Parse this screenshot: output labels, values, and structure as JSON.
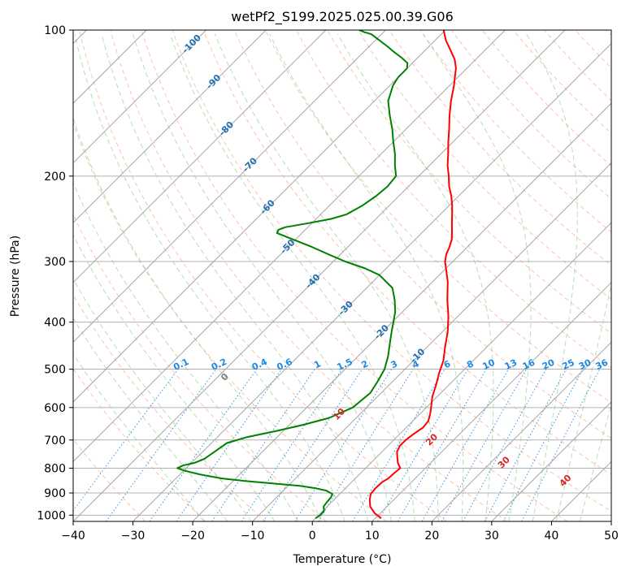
{
  "chart_data": {
    "type": "line",
    "title": "wetPf2_S199.2025.025.00.39.G06",
    "xlabel": "Temperature (°C)",
    "ylabel": "Pressure (hPa)",
    "xlim": [
      -40,
      50
    ],
    "ylim": [
      1030,
      100
    ],
    "y_scale": "log",
    "x_ticks": [
      -40,
      -30,
      -20,
      -10,
      0,
      10,
      20,
      30,
      40,
      50
    ],
    "y_ticks": [
      100,
      200,
      300,
      400,
      500,
      600,
      700,
      800,
      900,
      1000
    ],
    "grid": true,
    "skew": "isotherms slanted 45°",
    "colors": {
      "temperature": "#ff0000",
      "dewpoint": "#008000",
      "isotherm": "#808080",
      "dry_adiabat": "#ff8c69",
      "moist_adiabat": "#7fbf7f",
      "mixing_ratio": "#1e88e5",
      "isotherm_label": "#1f6fb4",
      "mixing_label": "#1e88e5",
      "moist_label_zero": "#808080",
      "moist_label": "#d62728"
    },
    "series": [
      {
        "name": "temperature",
        "points": [
          [
            1015,
            11.0
          ],
          [
            990,
            9.0
          ],
          [
            960,
            7.2
          ],
          [
            930,
            6.0
          ],
          [
            905,
            5.2
          ],
          [
            880,
            5.0
          ],
          [
            855,
            5.1
          ],
          [
            840,
            5.5
          ],
          [
            820,
            5.6
          ],
          [
            800,
            5.8
          ],
          [
            780,
            4.5
          ],
          [
            760,
            3.5
          ],
          [
            740,
            2.5
          ],
          [
            720,
            2.0
          ],
          [
            700,
            2.0
          ],
          [
            680,
            2.3
          ],
          [
            660,
            2.8
          ],
          [
            640,
            2.6
          ],
          [
            620,
            1.8
          ],
          [
            600,
            0.8
          ],
          [
            570,
            -0.8
          ],
          [
            540,
            -2.1
          ],
          [
            510,
            -3.6
          ],
          [
            480,
            -5.0
          ],
          [
            450,
            -7.0
          ],
          [
            420,
            -9.0
          ],
          [
            390,
            -11.5
          ],
          [
            360,
            -14.5
          ],
          [
            330,
            -17.5
          ],
          [
            310,
            -20.0
          ],
          [
            300,
            -21.3
          ],
          [
            290,
            -22.3
          ],
          [
            280,
            -23.0
          ],
          [
            270,
            -23.9
          ],
          [
            260,
            -25.2
          ],
          [
            250,
            -26.6
          ],
          [
            240,
            -28.0
          ],
          [
            230,
            -29.5
          ],
          [
            220,
            -31.2
          ],
          [
            210,
            -33.2
          ],
          [
            200,
            -35.0
          ],
          [
            190,
            -37.0
          ],
          [
            180,
            -38.8
          ],
          [
            170,
            -40.8
          ],
          [
            160,
            -42.8
          ],
          [
            150,
            -45.0
          ],
          [
            140,
            -47.2
          ],
          [
            130,
            -49.3
          ],
          [
            126,
            -50.3
          ],
          [
            120,
            -51.8
          ],
          [
            115,
            -53.5
          ],
          [
            110,
            -55.8
          ],
          [
            105,
            -58.2
          ],
          [
            100,
            -60.3
          ]
        ]
      },
      {
        "name": "dewpoint",
        "points": [
          [
            1015,
            0.0
          ],
          [
            1000,
            0.3
          ],
          [
            980,
            0.2
          ],
          [
            960,
            -0.6
          ],
          [
            940,
            -0.8
          ],
          [
            920,
            -0.9
          ],
          [
            905,
            -1.2
          ],
          [
            890,
            -2.8
          ],
          [
            880,
            -5.0
          ],
          [
            870,
            -8.0
          ],
          [
            860,
            -13.0
          ],
          [
            850,
            -18.0
          ],
          [
            840,
            -22.3
          ],
          [
            825,
            -26.5
          ],
          [
            810,
            -29.8
          ],
          [
            800,
            -31.5
          ],
          [
            790,
            -31.0
          ],
          [
            780,
            -29.5
          ],
          [
            765,
            -28.5
          ],
          [
            740,
            -28.0
          ],
          [
            710,
            -27.4
          ],
          [
            690,
            -25.0
          ],
          [
            670,
            -21.0
          ],
          [
            650,
            -17.5
          ],
          [
            630,
            -14.5
          ],
          [
            600,
            -12.3
          ],
          [
            560,
            -11.8
          ],
          [
            530,
            -12.5
          ],
          [
            500,
            -13.4
          ],
          [
            470,
            -15.0
          ],
          [
            440,
            -17.0
          ],
          [
            420,
            -18.4
          ],
          [
            400,
            -19.8
          ],
          [
            380,
            -21.3
          ],
          [
            360,
            -23.3
          ],
          [
            340,
            -25.7
          ],
          [
            320,
            -30.0
          ],
          [
            310,
            -33.5
          ],
          [
            300,
            -38.0
          ],
          [
            290,
            -42.0
          ],
          [
            280,
            -46.0
          ],
          [
            270,
            -50.5
          ],
          [
            262,
            -54.2
          ],
          [
            258,
            -54.5
          ],
          [
            255,
            -53.8
          ],
          [
            250,
            -50.5
          ],
          [
            245,
            -47.5
          ],
          [
            240,
            -45.7
          ],
          [
            230,
            -44.5
          ],
          [
            220,
            -43.8
          ],
          [
            210,
            -43.5
          ],
          [
            200,
            -43.8
          ],
          [
            190,
            -45.8
          ],
          [
            180,
            -47.7
          ],
          [
            170,
            -50.0
          ],
          [
            160,
            -52.3
          ],
          [
            150,
            -55.0
          ],
          [
            140,
            -57.7
          ],
          [
            130,
            -59.5
          ],
          [
            125,
            -60.0
          ],
          [
            120,
            -60.0
          ],
          [
            117,
            -60.8
          ],
          [
            114,
            -62.7
          ],
          [
            111,
            -64.9
          ],
          [
            108,
            -67.0
          ],
          [
            105,
            -69.3
          ],
          [
            102,
            -71.7
          ],
          [
            101,
            -73.2
          ],
          [
            100,
            -74.4
          ]
        ]
      }
    ],
    "isotherm_labels": [
      "-100",
      "-90",
      "-80",
      "-70",
      "-60",
      "-50",
      "-40",
      "-30",
      "-20",
      "-10"
    ],
    "isotherm_label_values": [
      -100,
      -90,
      -80,
      -70,
      -60,
      -50,
      -40,
      -30,
      -20,
      -10
    ],
    "isotherm_label_pressures": [
      107,
      128,
      160,
      190,
      232,
      280,
      330,
      375,
      420,
      470
    ],
    "mixing_ratio_labels": [
      "0.1",
      "0.2",
      "0.4",
      "0.6",
      "1",
      "1.5",
      "2",
      "3",
      "4",
      "6",
      "8",
      "10",
      "13",
      "16",
      "20",
      "25",
      "30",
      "36"
    ],
    "mixing_ratio_values": [
      0.1,
      0.2,
      0.4,
      0.6,
      1,
      1.5,
      2,
      3,
      4,
      6,
      8,
      10,
      13,
      16,
      20,
      25,
      30,
      36
    ],
    "mixing_ratio_label_pressure": 490,
    "moist_adiabat_labels": [
      "0",
      "10",
      "20",
      "30",
      "40"
    ],
    "moist_adiabat_values": [
      0,
      10,
      20,
      30,
      40
    ],
    "moist_adiabat_label_pressures": [
      520,
      620,
      700,
      780,
      850
    ]
  }
}
